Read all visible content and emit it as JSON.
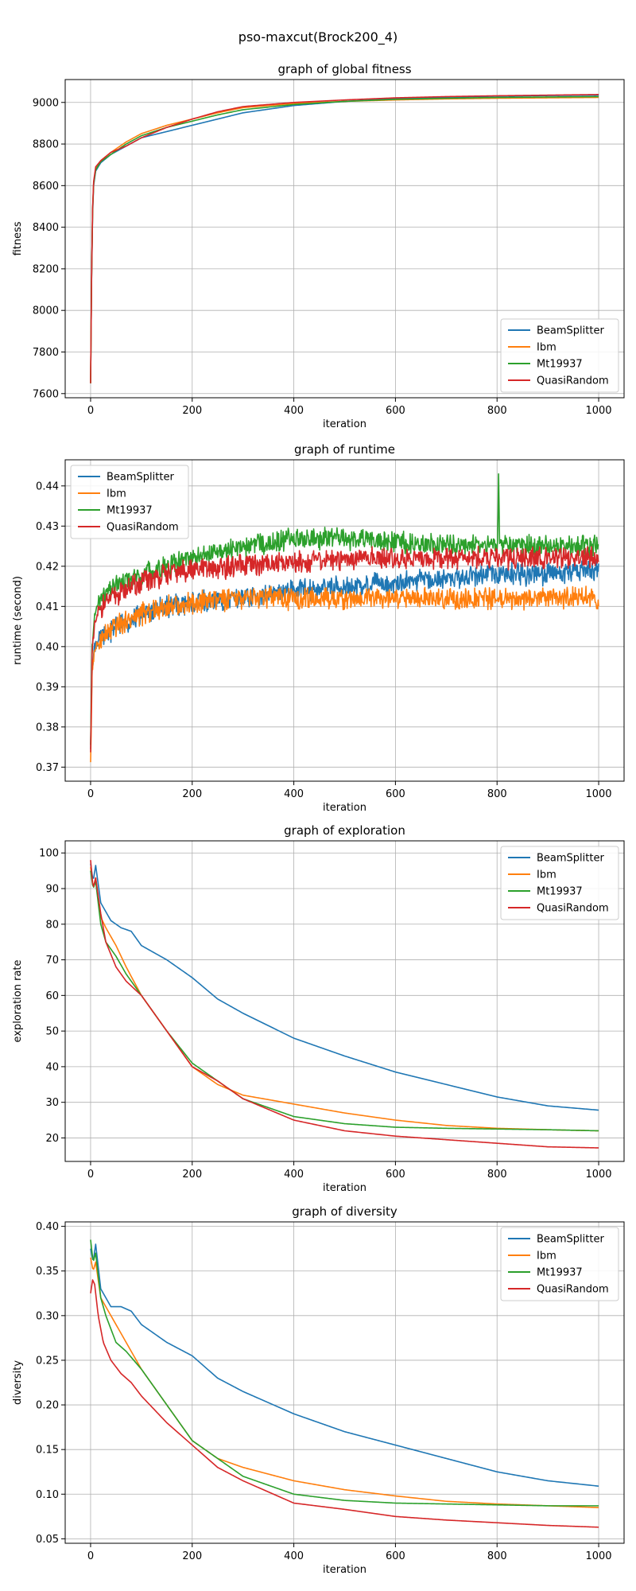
{
  "figure_title": "pso-maxcut(Brock200_4)",
  "colors": {
    "BeamSplitter": "#1f77b4",
    "Ibm": "#ff7f0e",
    "Mt19937": "#2ca02c",
    "QuasiRandom": "#d62728"
  },
  "chart_data": [
    {
      "type": "line",
      "title": "graph of global fitness",
      "xlabel": "iteration",
      "ylabel": "fitness",
      "xlim": [
        -50,
        1050
      ],
      "ylim": [
        7580,
        9110
      ],
      "xticks": [
        0,
        200,
        400,
        600,
        800,
        1000
      ],
      "yticks": [
        7600,
        7800,
        8000,
        8200,
        8400,
        8600,
        8800,
        9000
      ],
      "grid": true,
      "legend": "bottom-right",
      "noise": 0,
      "series": [
        {
          "name": "BeamSplitter",
          "x": [
            0,
            3,
            6,
            10,
            20,
            40,
            70,
            100,
            150,
            200,
            250,
            300,
            400,
            500,
            600,
            700,
            800,
            900,
            1000
          ],
          "y": [
            7650,
            8400,
            8600,
            8670,
            8710,
            8750,
            8790,
            8830,
            8860,
            8890,
            8920,
            8950,
            8985,
            9005,
            9018,
            9025,
            9030,
            9033,
            9035
          ]
        },
        {
          "name": "Ibm",
          "x": [
            0,
            3,
            6,
            10,
            20,
            40,
            70,
            100,
            150,
            200,
            250,
            300,
            400,
            500,
            600,
            700,
            800,
            900,
            1000
          ],
          "y": [
            7650,
            8420,
            8610,
            8680,
            8720,
            8760,
            8810,
            8850,
            8890,
            8920,
            8950,
            8975,
            8995,
            9005,
            9012,
            9017,
            9020,
            9022,
            9024
          ]
        },
        {
          "name": "Mt19937",
          "x": [
            0,
            3,
            6,
            10,
            20,
            40,
            70,
            100,
            150,
            200,
            250,
            300,
            400,
            500,
            600,
            700,
            800,
            900,
            1000
          ],
          "y": [
            7650,
            8420,
            8610,
            8675,
            8715,
            8750,
            8800,
            8840,
            8880,
            8910,
            8940,
            8965,
            8990,
            9005,
            9015,
            9020,
            9024,
            9026,
            9028
          ]
        },
        {
          "name": "QuasiRandom",
          "x": [
            0,
            3,
            6,
            10,
            20,
            40,
            70,
            100,
            150,
            200,
            250,
            300,
            400,
            500,
            600,
            700,
            800,
            900,
            1000
          ],
          "y": [
            7650,
            8430,
            8620,
            8690,
            8720,
            8760,
            8790,
            8830,
            8880,
            8920,
            8955,
            8980,
            9000,
            9012,
            9022,
            9028,
            9032,
            9035,
            9038
          ]
        }
      ]
    },
    {
      "type": "line",
      "title": "graph of runtime",
      "xlabel": "iteration",
      "ylabel": "runtime (second)",
      "xlim": [
        -50,
        1050
      ],
      "ylim": [
        0.3665,
        0.4465
      ],
      "xticks": [
        0,
        200,
        400,
        600,
        800,
        1000
      ],
      "yticks": [
        0.37,
        0.38,
        0.39,
        0.4,
        0.41,
        0.42,
        0.43,
        0.44
      ],
      "grid": true,
      "legend": "top-left",
      "noise": 0.0022,
      "series": [
        {
          "name": "BeamSplitter",
          "x": [
            0,
            3,
            8,
            20,
            50,
            100,
            150,
            200,
            300,
            400,
            500,
            600,
            700,
            800,
            900,
            1000
          ],
          "y": [
            0.375,
            0.395,
            0.4,
            0.402,
            0.405,
            0.408,
            0.41,
            0.411,
            0.412,
            0.414,
            0.415,
            0.416,
            0.417,
            0.418,
            0.418,
            0.419
          ]
        },
        {
          "name": "Ibm",
          "x": [
            0,
            3,
            8,
            20,
            50,
            100,
            150,
            200,
            300,
            400,
            500,
            600,
            700,
            800,
            900,
            1000
          ],
          "y": [
            0.37,
            0.394,
            0.399,
            0.402,
            0.405,
            0.408,
            0.41,
            0.411,
            0.412,
            0.412,
            0.412,
            0.412,
            0.412,
            0.412,
            0.412,
            0.412
          ]
        },
        {
          "name": "Mt19937",
          "x": [
            0,
            3,
            8,
            20,
            50,
            100,
            150,
            200,
            300,
            400,
            500,
            600,
            700,
            800,
            900,
            1000
          ],
          "y": [
            0.375,
            0.4,
            0.408,
            0.412,
            0.415,
            0.418,
            0.42,
            0.422,
            0.425,
            0.427,
            0.427,
            0.426,
            0.425,
            0.425,
            0.425,
            0.425
          ]
        },
        {
          "name": "QuasiRandom",
          "x": [
            0,
            3,
            8,
            20,
            50,
            100,
            150,
            200,
            300,
            400,
            500,
            600,
            700,
            800,
            900,
            1000
          ],
          "y": [
            0.373,
            0.398,
            0.406,
            0.41,
            0.413,
            0.416,
            0.418,
            0.419,
            0.42,
            0.421,
            0.422,
            0.422,
            0.422,
            0.422,
            0.422,
            0.422
          ]
        }
      ],
      "annotations": [
        {
          "series": "Mt19937",
          "x": 803,
          "y": 0.443
        }
      ]
    },
    {
      "type": "line",
      "title": "graph of exploration",
      "xlabel": "iteration",
      "ylabel": "exploration rate",
      "xlim": [
        -50,
        1050
      ],
      "ylim": [
        13.4,
        103.4
      ],
      "xticks": [
        0,
        200,
        400,
        600,
        800,
        1000
      ],
      "yticks": [
        20,
        30,
        40,
        50,
        60,
        70,
        80,
        90,
        100
      ],
      "grid": true,
      "legend": "top-right",
      "noise": 0,
      "series": [
        {
          "name": "BeamSplitter",
          "x": [
            0,
            5,
            10,
            20,
            40,
            60,
            80,
            100,
            150,
            200,
            250,
            300,
            400,
            500,
            600,
            700,
            800,
            900,
            1000
          ],
          "y": [
            97,
            92,
            96.5,
            86,
            81,
            79,
            78,
            74,
            70,
            65,
            59,
            55,
            48,
            43,
            38.5,
            35,
            31.5,
            29,
            27.8
          ]
        },
        {
          "name": "Ibm",
          "x": [
            0,
            5,
            10,
            20,
            30,
            50,
            70,
            100,
            150,
            200,
            250,
            300,
            400,
            500,
            600,
            700,
            800,
            900,
            1000
          ],
          "y": [
            96,
            90,
            93,
            82,
            79,
            74,
            68,
            60,
            50,
            40,
            35,
            32,
            29.5,
            27,
            25,
            23.5,
            22.7,
            22.3,
            22
          ]
        },
        {
          "name": "Mt19937",
          "x": [
            0,
            5,
            10,
            20,
            30,
            50,
            70,
            100,
            150,
            200,
            250,
            300,
            400,
            500,
            600,
            700,
            800,
            900,
            1000
          ],
          "y": [
            95,
            90,
            92,
            80,
            75,
            71,
            66,
            60,
            50,
            41,
            36,
            31,
            26,
            24,
            23,
            22.7,
            22.5,
            22.3,
            22
          ]
        },
        {
          "name": "QuasiRandom",
          "x": [
            0,
            5,
            10,
            20,
            30,
            50,
            70,
            100,
            150,
            200,
            250,
            300,
            400,
            500,
            600,
            700,
            800,
            900,
            1000
          ],
          "y": [
            98,
            90,
            93,
            83,
            75,
            68,
            64,
            60,
            50,
            40,
            36,
            31,
            25,
            22,
            20.5,
            19.5,
            18.5,
            17.5,
            17.2
          ]
        }
      ]
    },
    {
      "type": "line",
      "title": "graph of diversity",
      "xlabel": "iteration",
      "ylabel": "diversity",
      "xlim": [
        -50,
        1050
      ],
      "ylim": [
        0.045,
        0.405
      ],
      "xticks": [
        0,
        200,
        400,
        600,
        800,
        1000
      ],
      "yticks": [
        0.05,
        0.1,
        0.15,
        0.2,
        0.25,
        0.3,
        0.35,
        0.4
      ],
      "grid": true,
      "legend": "top-right",
      "noise": 0,
      "series": [
        {
          "name": "BeamSplitter",
          "x": [
            0,
            5,
            10,
            20,
            40,
            60,
            80,
            100,
            150,
            200,
            250,
            300,
            400,
            500,
            600,
            700,
            800,
            900,
            1000
          ],
          "y": [
            0.375,
            0.36,
            0.38,
            0.33,
            0.31,
            0.31,
            0.305,
            0.29,
            0.27,
            0.255,
            0.23,
            0.215,
            0.19,
            0.17,
            0.155,
            0.14,
            0.125,
            0.115,
            0.109
          ]
        },
        {
          "name": "Ibm",
          "x": [
            0,
            5,
            10,
            20,
            30,
            50,
            70,
            100,
            150,
            200,
            250,
            300,
            400,
            500,
            600,
            700,
            800,
            900,
            1000
          ],
          "y": [
            0.365,
            0.35,
            0.36,
            0.32,
            0.31,
            0.29,
            0.27,
            0.24,
            0.2,
            0.16,
            0.14,
            0.13,
            0.115,
            0.105,
            0.098,
            0.092,
            0.089,
            0.087,
            0.085
          ]
        },
        {
          "name": "Mt19937",
          "x": [
            0,
            5,
            10,
            20,
            30,
            50,
            70,
            100,
            150,
            200,
            250,
            300,
            400,
            500,
            600,
            700,
            800,
            900,
            1000
          ],
          "y": [
            0.385,
            0.36,
            0.37,
            0.32,
            0.3,
            0.27,
            0.26,
            0.24,
            0.2,
            0.16,
            0.14,
            0.12,
            0.1,
            0.093,
            0.09,
            0.089,
            0.088,
            0.087,
            0.087
          ]
        },
        {
          "name": "QuasiRandom",
          "x": [
            0,
            4,
            8,
            15,
            25,
            40,
            60,
            80,
            100,
            150,
            200,
            250,
            300,
            400,
            500,
            600,
            700,
            800,
            900,
            1000
          ],
          "y": [
            0.325,
            0.34,
            0.335,
            0.3,
            0.27,
            0.25,
            0.235,
            0.225,
            0.21,
            0.18,
            0.155,
            0.13,
            0.115,
            0.09,
            0.083,
            0.075,
            0.071,
            0.068,
            0.065,
            0.063
          ]
        }
      ]
    }
  ]
}
